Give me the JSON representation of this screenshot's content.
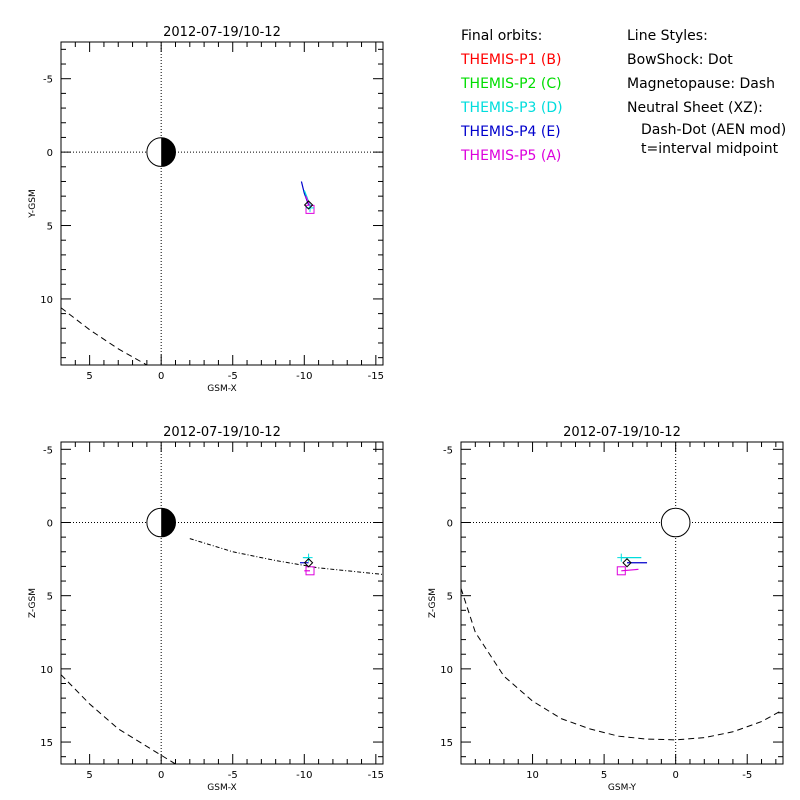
{
  "legend": {
    "orbits_header": "Final orbits:",
    "probes": [
      {
        "label": "THEMIS-P1 (B)",
        "color": "#ff0000"
      },
      {
        "label": "THEMIS-P2 (C)",
        "color": "#00dd00"
      },
      {
        "label": "THEMIS-P3 (D)",
        "color": "#00dddd"
      },
      {
        "label": "THEMIS-P4 (E)",
        "color": "#0000cc"
      },
      {
        "label": "THEMIS-P5 (A)",
        "color": "#dd00dd"
      }
    ],
    "styles_header": "Line Styles:",
    "styles": {
      "bowshock": "BowShock: Dot",
      "magnetopause": "Magnetopause: Dash",
      "neutral_sheet": "Neutral Sheet (XZ):",
      "neutral_sheet_model": "Dash-Dot (AEN mod)",
      "midpoint": "t=interval midpoint"
    }
  },
  "chart_data": [
    {
      "type": "line",
      "title": "2012-07-19/10-12",
      "xlabel": "GSM-X",
      "ylabel": "Y-GSM",
      "xlim": [
        7,
        -15.5
      ],
      "ylim": [
        -7.5,
        14.5
      ],
      "xticks": [
        5,
        0,
        -5,
        -10,
        -15
      ],
      "yticks": [
        -5,
        0,
        5,
        10
      ],
      "xtick_labels": [
        "5",
        "0",
        "-5",
        "-10",
        "-15"
      ],
      "ytick_labels": [
        "-5",
        "0",
        "5",
        "10"
      ],
      "earth": {
        "x": 0,
        "y": 0,
        "r": 1,
        "half_dark": true
      },
      "magnetopause": {
        "x": [
          7,
          5,
          3,
          1
        ],
        "y": [
          10.6,
          12.1,
          13.4,
          14.5
        ]
      },
      "orbits": [
        {
          "probe": "THEMIS-P4 (E)",
          "color": "#0000cc",
          "x": [
            -9.8,
            -10.0,
            -10.3
          ],
          "y": [
            2.0,
            2.8,
            3.6
          ]
        },
        {
          "probe": "THEMIS-P3 (D)",
          "color": "#00dddd",
          "x": [
            -10.0,
            -10.2,
            -10.4
          ],
          "y": [
            2.6,
            3.1,
            3.7
          ]
        },
        {
          "probe": "THEMIS-P5 (A)",
          "color": "#dd00dd",
          "x": [
            -10.1,
            -10.4
          ],
          "y": [
            3.0,
            3.7
          ]
        }
      ],
      "markers": [
        {
          "probe": "THEMIS-P5 (A)",
          "shape": "square",
          "color": "#dd00dd",
          "x": -10.4,
          "y": 3.9
        },
        {
          "probe": "THEMIS-P3 (D)",
          "shape": "plus",
          "color": "#00dddd",
          "x": -10.4,
          "y": 3.8
        },
        {
          "probe": "THEMIS-P4 (E)",
          "shape": "diamond",
          "color": "#000000",
          "x": -10.3,
          "y": 3.6
        }
      ]
    },
    {
      "type": "line",
      "title": "2012-07-19/10-12",
      "xlabel": "GSM-X",
      "ylabel": "Z-GSM",
      "xlim": [
        7,
        -15.5
      ],
      "ylim": [
        -5.5,
        16.5
      ],
      "xticks": [
        5,
        0,
        -5,
        -10,
        -15
      ],
      "yticks": [
        -5,
        0,
        5,
        10,
        15
      ],
      "xtick_labels": [
        "5",
        "0",
        "-5",
        "-10",
        "-15"
      ],
      "ytick_labels": [
        "-5",
        "0",
        "5",
        "10",
        "15"
      ],
      "earth": {
        "x": 0,
        "y": 0,
        "r": 1,
        "half_dark": true
      },
      "magnetopause": {
        "x": [
          7,
          5,
          3,
          1,
          -1
        ],
        "y": [
          10.4,
          12.4,
          14.1,
          15.3,
          16.5
        ]
      },
      "neutral_sheet": {
        "x": [
          -2,
          -5,
          -8,
          -11,
          -14,
          -15.5
        ],
        "y": [
          1.1,
          2.0,
          2.6,
          3.1,
          3.4,
          3.55
        ]
      },
      "orbits": [
        {
          "probe": "THEMIS-P4 (E)",
          "color": "#0000cc",
          "x": [
            -9.7,
            -10.3
          ],
          "y": [
            2.75,
            2.75
          ]
        },
        {
          "probe": "THEMIS-P3 (D)",
          "color": "#00dddd",
          "x": [
            -9.9,
            -10.4
          ],
          "y": [
            2.4,
            2.4
          ]
        },
        {
          "probe": "THEMIS-P5 (A)",
          "color": "#dd00dd",
          "x": [
            -10.0,
            -10.4
          ],
          "y": [
            3.3,
            3.3
          ]
        }
      ],
      "markers": [
        {
          "probe": "THEMIS-P5 (A)",
          "shape": "square",
          "color": "#dd00dd",
          "x": -10.4,
          "y": 3.3
        },
        {
          "probe": "THEMIS-P3 (D)",
          "shape": "plus",
          "color": "#00dddd",
          "x": -10.3,
          "y": 2.4
        },
        {
          "probe": "THEMIS-P4 (E)",
          "shape": "diamond",
          "color": "#000000",
          "x": -10.3,
          "y": 2.75
        }
      ]
    },
    {
      "type": "line",
      "title": "2012-07-19/10-12",
      "xlabel": "GSM-Y",
      "ylabel": "Z-GSM",
      "xlim": [
        15,
        -7.5
      ],
      "ylim": [
        -5.5,
        16.5
      ],
      "xticks": [
        10,
        5,
        0,
        -5
      ],
      "yticks": [
        -5,
        0,
        5,
        10,
        15
      ],
      "xtick_labels": [
        "10",
        "5",
        "0",
        "-5"
      ],
      "ytick_labels": [
        "-5",
        "0",
        "5",
        "10",
        "15"
      ],
      "earth": {
        "x": 0,
        "y": 0,
        "r": 1,
        "half_dark": false
      },
      "magnetopause": {
        "x": [
          15,
          14,
          12,
          10,
          8,
          6,
          4,
          2,
          0,
          -2,
          -4,
          -6,
          -7.5
        ],
        "y": [
          4.5,
          7.5,
          10.5,
          12.2,
          13.4,
          14.1,
          14.6,
          14.8,
          14.85,
          14.7,
          14.3,
          13.6,
          12.8
        ]
      },
      "orbits": [
        {
          "probe": "THEMIS-P4 (E)",
          "color": "#0000cc",
          "x": [
            3.4,
            2.0
          ],
          "y": [
            2.75,
            2.75
          ]
        },
        {
          "probe": "THEMIS-P3 (D)",
          "color": "#00dddd",
          "x": [
            3.8,
            2.4
          ],
          "y": [
            2.4,
            2.4
          ]
        },
        {
          "probe": "THEMIS-P5 (A)",
          "color": "#dd00dd",
          "x": [
            3.8,
            2.6
          ],
          "y": [
            3.3,
            3.2
          ]
        }
      ],
      "markers": [
        {
          "probe": "THEMIS-P5 (A)",
          "shape": "square",
          "color": "#dd00dd",
          "x": 3.8,
          "y": 3.3
        },
        {
          "probe": "THEMIS-P3 (D)",
          "shape": "plus",
          "color": "#00dddd",
          "x": 3.8,
          "y": 2.4
        },
        {
          "probe": "THEMIS-P4 (E)",
          "shape": "diamond",
          "color": "#000000",
          "x": 3.4,
          "y": 2.75
        }
      ]
    }
  ]
}
